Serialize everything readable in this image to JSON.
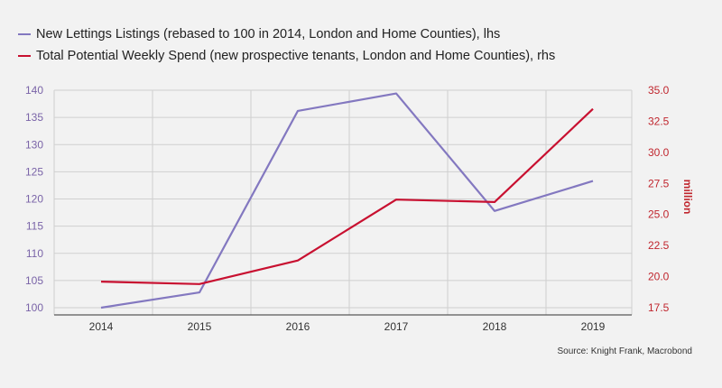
{
  "chart_data": {
    "type": "line",
    "title": "",
    "x": [
      "2014",
      "2015",
      "2016",
      "2017",
      "2018",
      "2019"
    ],
    "series": [
      {
        "name": "New Lettings Listings (rebased to 100 in 2014, London and Home Counties), lhs",
        "axis": "left",
        "color": "#8378c0",
        "values": [
          100,
          102.8,
          136.2,
          139.4,
          117.8,
          123.3
        ]
      },
      {
        "name": "Total Potential Weekly Spend (new prospective tenants, London and Home Counties), rhs",
        "axis": "right",
        "color": "#c81030",
        "values": [
          19.6,
          19.4,
          21.3,
          26.2,
          26.0,
          33.5
        ]
      }
    ],
    "y_left": {
      "label": "",
      "ylim": [
        100,
        140
      ],
      "ticks": [
        "100",
        "105",
        "110",
        "115",
        "120",
        "125",
        "130",
        "135",
        "140"
      ],
      "color": "#7a64a8"
    },
    "y_right": {
      "label": "million",
      "ylim": [
        17.5,
        35
      ],
      "ticks": [
        "17.5",
        "20.0",
        "22.5",
        "25.0",
        "27.5",
        "30.0",
        "32.5",
        "35.0"
      ],
      "color": "#c0262e"
    },
    "grid": true,
    "legend_position": "top-left",
    "source": "Source: Knight Frank, Macrobond"
  }
}
